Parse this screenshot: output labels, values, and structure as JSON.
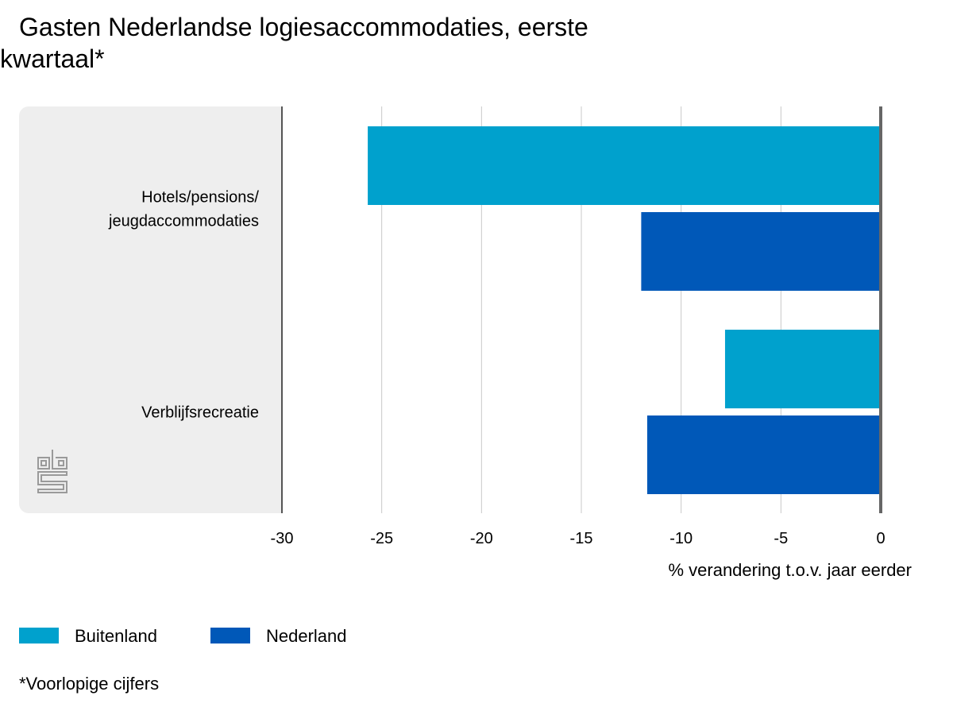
{
  "chart_data": {
    "type": "bar",
    "orientation": "horizontal",
    "title": "Gasten Nederlandse logiesaccommodaties, eerste kwartaal*",
    "categories": [
      "Hotels/pensions/\njeugdaccommodaties",
      "Verblijfsrecreatie"
    ],
    "series": [
      {
        "name": "Buitenland",
        "values": [
          -25.7,
          -7.8
        ],
        "color": "#00a1cd"
      },
      {
        "name": "Nederland",
        "values": [
          -12.0,
          -11.7
        ],
        "color": "#0058b8"
      }
    ],
    "xlabel": "% verandering t.o.v. jaar eerder",
    "ylabel": "",
    "xlim": [
      -30,
      0
    ],
    "xticks": [
      "-30",
      "-25",
      "-20",
      "-15",
      "-10",
      "-5",
      "0"
    ],
    "grid": true,
    "legend_position": "bottom-left",
    "footnote": "*Voorlopige cijfers"
  }
}
